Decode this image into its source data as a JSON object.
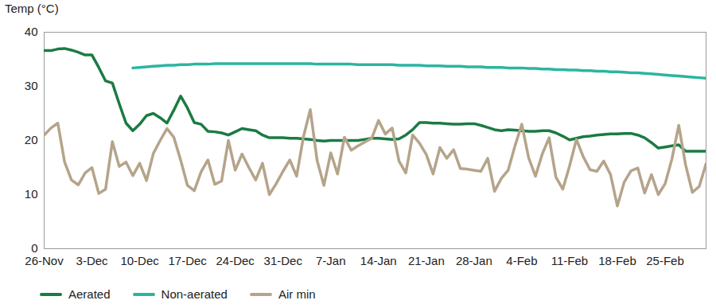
{
  "chart_data": {
    "type": "line",
    "y_label": "Temp (°C)",
    "categories": [
      "26-Nov",
      null,
      null,
      null,
      null,
      null,
      null,
      "3-Dec",
      null,
      null,
      null,
      null,
      null,
      null,
      "10-Dec",
      null,
      null,
      null,
      null,
      null,
      null,
      "17-Dec",
      null,
      null,
      null,
      null,
      null,
      null,
      "24-Dec",
      null,
      null,
      null,
      null,
      null,
      null,
      "31-Dec",
      null,
      null,
      null,
      null,
      null,
      null,
      "7-Jan",
      null,
      null,
      null,
      null,
      null,
      null,
      "14-Jan",
      null,
      null,
      null,
      null,
      null,
      null,
      "21-Jan",
      null,
      null,
      null,
      null,
      null,
      null,
      "28-Jan",
      null,
      null,
      null,
      null,
      null,
      null,
      "4-Feb",
      null,
      null,
      null,
      null,
      null,
      null,
      "11-Feb",
      null,
      null,
      null,
      null,
      null,
      null,
      "18-Feb",
      null,
      null,
      null,
      null,
      null,
      null,
      "25-Feb",
      null,
      null,
      null,
      null,
      null,
      null
    ],
    "series": [
      {
        "name": "Aerated",
        "color": "#1b7b43",
        "values": [
          36.6,
          36.6,
          36.9,
          37.0,
          36.7,
          36.3,
          35.8,
          35.8,
          33.5,
          31.0,
          30.6,
          26.8,
          23.2,
          21.8,
          23.0,
          24.6,
          25.0,
          24.2,
          23.2,
          25.6,
          28.2,
          26.0,
          23.3,
          23.0,
          21.7,
          21.6,
          21.4,
          21.0,
          21.6,
          22.2,
          22.0,
          21.8,
          21.0,
          20.5,
          20.5,
          20.5,
          20.4,
          20.4,
          20.3,
          20.2,
          20.0,
          19.9,
          20.0,
          20.0,
          20.0,
          20.0,
          20.0,
          20.2,
          20.4,
          20.4,
          20.3,
          20.2,
          20.3,
          21.0,
          22.0,
          23.3,
          23.3,
          23.2,
          23.2,
          23.1,
          23.0,
          23.0,
          23.1,
          23.1,
          22.8,
          22.4,
          22.0,
          21.8,
          22.0,
          21.9,
          21.8,
          21.7,
          21.7,
          21.8,
          21.8,
          21.4,
          20.8,
          20.1,
          20.4,
          20.7,
          20.8,
          21.0,
          21.1,
          21.2,
          21.2,
          21.3,
          21.3,
          21.0,
          20.5,
          19.6,
          18.6,
          18.8,
          19.0,
          19.2,
          18.0,
          18.0,
          18.0,
          18.0
        ]
      },
      {
        "name": "Non-aerated",
        "color": "#2bb5a0",
        "values": [
          null,
          null,
          null,
          null,
          null,
          null,
          null,
          null,
          null,
          null,
          null,
          null,
          null,
          33.4,
          33.5,
          33.6,
          33.7,
          33.8,
          33.9,
          33.9,
          34.0,
          34.0,
          34.1,
          34.1,
          34.1,
          34.2,
          34.2,
          34.2,
          34.2,
          34.2,
          34.2,
          34.2,
          34.2,
          34.2,
          34.2,
          34.2,
          34.2,
          34.2,
          34.2,
          34.2,
          34.1,
          34.1,
          34.1,
          34.1,
          34.1,
          34.1,
          34.0,
          34.0,
          34.0,
          34.0,
          34.0,
          34.0,
          33.9,
          33.9,
          33.9,
          33.9,
          33.8,
          33.8,
          33.8,
          33.7,
          33.7,
          33.7,
          33.6,
          33.6,
          33.6,
          33.5,
          33.5,
          33.5,
          33.4,
          33.4,
          33.4,
          33.3,
          33.3,
          33.2,
          33.2,
          33.1,
          33.1,
          33.0,
          33.0,
          32.9,
          32.9,
          32.8,
          32.8,
          32.7,
          32.7,
          32.6,
          32.5,
          32.5,
          32.4,
          32.3,
          32.2,
          32.1,
          32.0,
          31.9,
          31.8,
          31.7,
          31.6,
          31.5
        ]
      },
      {
        "name": "Air min",
        "color": "#b5a48a",
        "values": [
          21.0,
          22.3,
          23.2,
          16.0,
          12.7,
          11.8,
          14.0,
          15.0,
          10.2,
          11.0,
          19.8,
          15.2,
          16.0,
          13.5,
          15.8,
          12.6,
          17.6,
          20.0,
          22.2,
          20.6,
          16.4,
          11.7,
          10.7,
          14.2,
          16.4,
          11.9,
          12.5,
          20.0,
          14.5,
          17.5,
          15.0,
          12.7,
          15.8,
          10.0,
          12.0,
          14.3,
          16.4,
          13.4,
          20.7,
          25.7,
          16.3,
          11.7,
          17.7,
          13.8,
          20.6,
          18.2,
          19.0,
          19.7,
          20.4,
          23.7,
          21.2,
          22.3,
          16.2,
          14.0,
          21.0,
          19.5,
          17.4,
          13.8,
          18.7,
          16.7,
          18.3,
          14.8,
          14.7,
          14.5,
          14.3,
          16.7,
          10.6,
          13.0,
          14.5,
          19.0,
          23.0,
          16.8,
          13.4,
          17.5,
          20.5,
          13.2,
          11.0,
          15.3,
          20.2,
          17.0,
          14.6,
          14.3,
          16.2,
          13.7,
          7.9,
          12.3,
          14.4,
          14.9,
          10.3,
          13.7,
          10.0,
          12.0,
          16.6,
          22.8,
          15.5,
          10.4,
          11.5,
          15.7
        ]
      }
    ],
    "ylim": [
      0,
      40
    ],
    "yticks": [
      0,
      10,
      20,
      30,
      40
    ],
    "grid": false,
    "legend": "bottom"
  }
}
